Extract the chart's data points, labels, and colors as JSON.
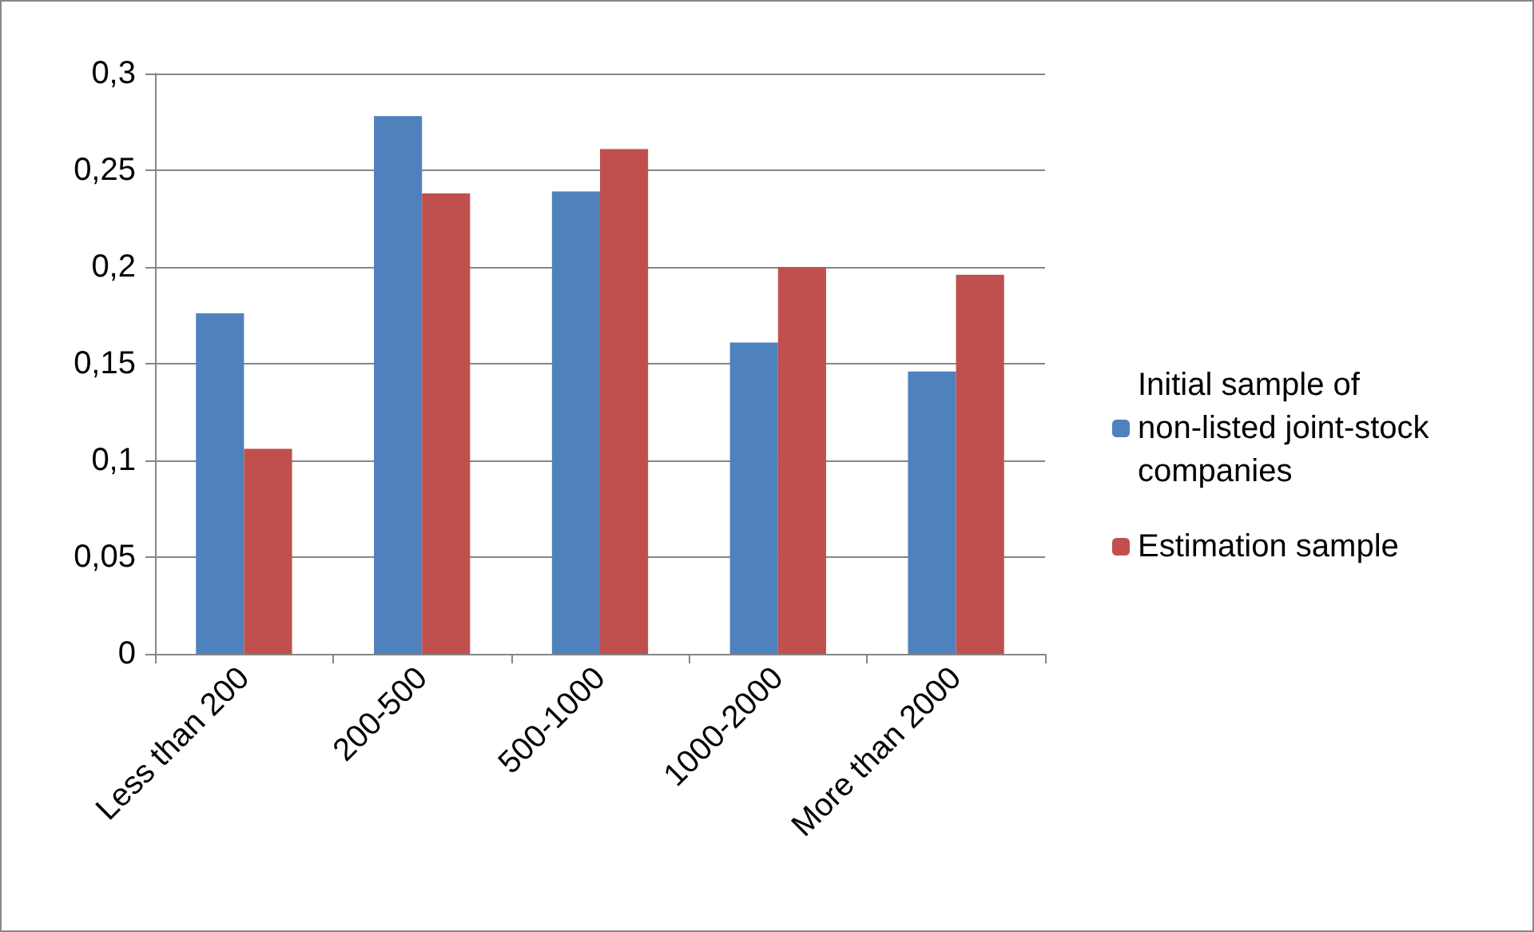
{
  "chart_data": {
    "type": "bar",
    "categories": [
      "Less than 200",
      "200-500",
      "500-1000",
      "1000-2000",
      "More than 2000"
    ],
    "series": [
      {
        "name": "Initial sample of non-listed joint-stock companies",
        "color": "#4f81bd",
        "values": [
          0.176,
          0.278,
          0.239,
          0.161,
          0.146
        ]
      },
      {
        "name": "Estimation sample",
        "color": "#c0504d",
        "values": [
          0.106,
          0.238,
          0.261,
          0.2,
          0.196
        ]
      }
    ],
    "ylim": [
      0,
      0.3
    ],
    "yticks": [
      {
        "value": 0,
        "label": "0"
      },
      {
        "value": 0.05,
        "label": "0,05"
      },
      {
        "value": 0.1,
        "label": "0,1"
      },
      {
        "value": 0.15,
        "label": "0,15"
      },
      {
        "value": 0.2,
        "label": "0,2"
      },
      {
        "value": 0.25,
        "label": "0,25"
      },
      {
        "value": 0.3,
        "label": "0,3"
      }
    ],
    "grid": "y",
    "legend": "right"
  }
}
